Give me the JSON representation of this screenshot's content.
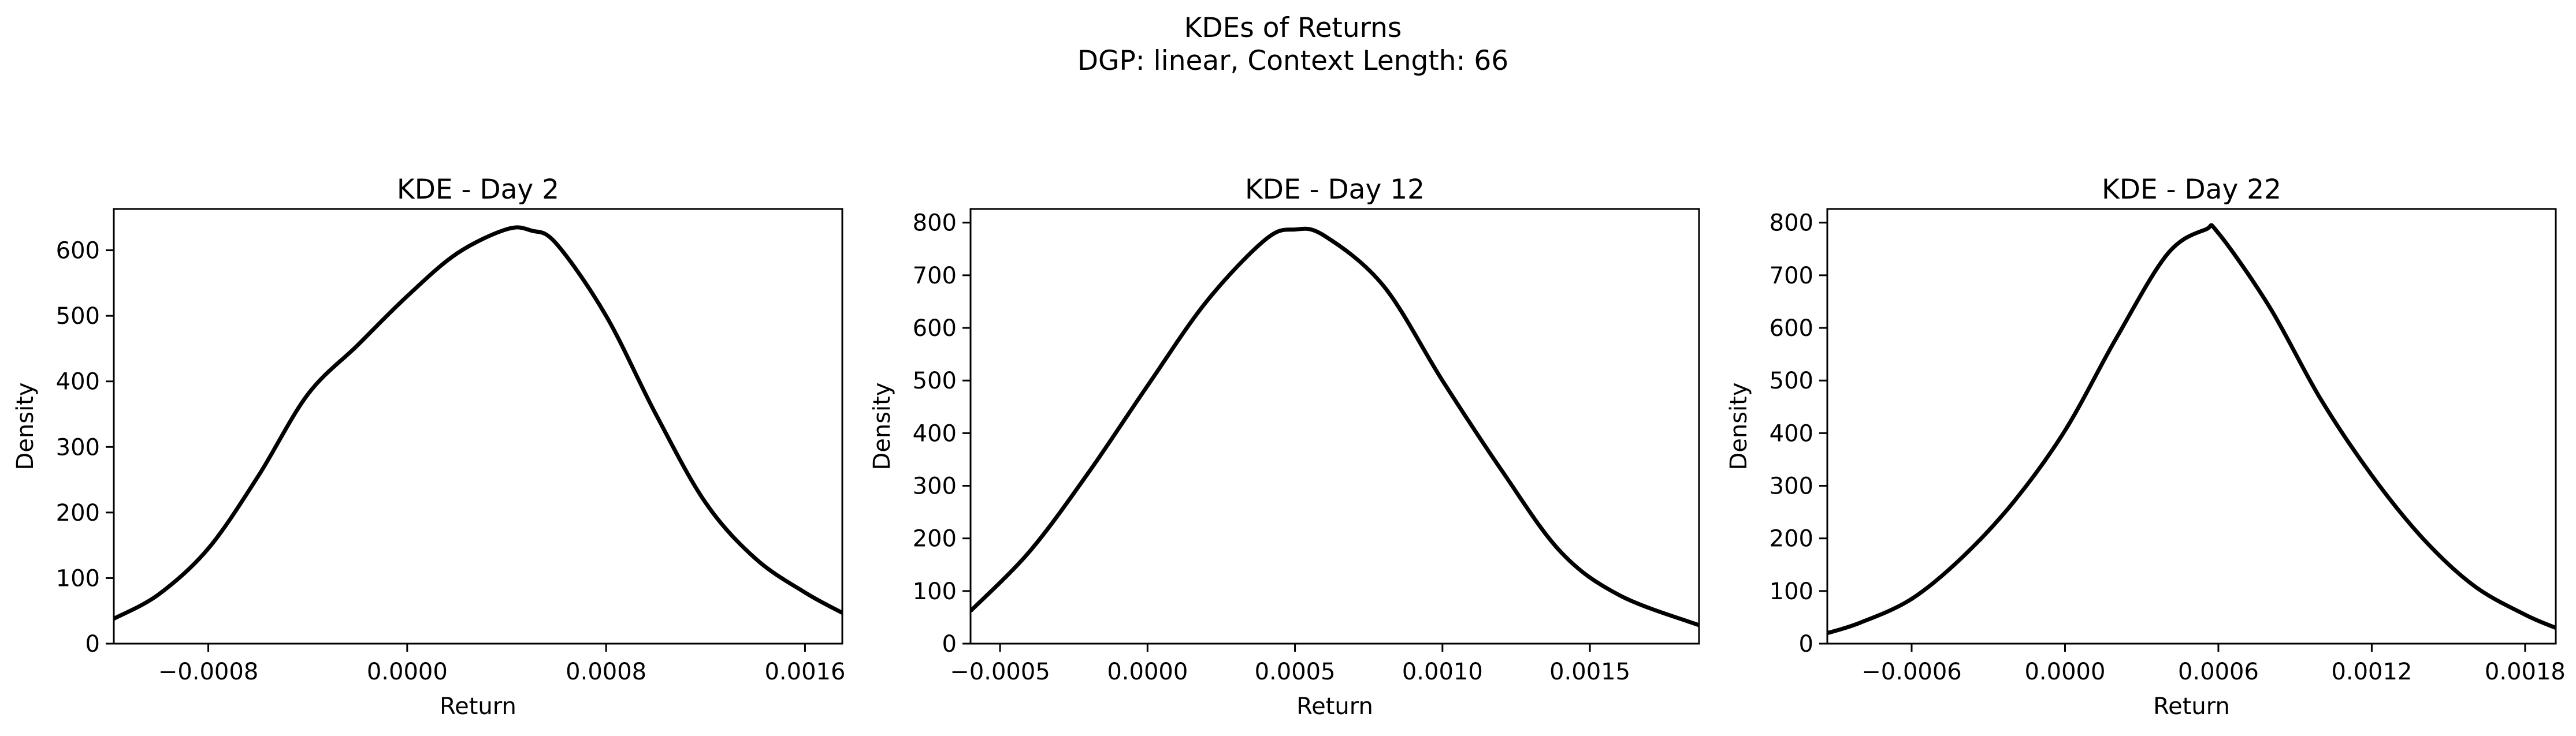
{
  "figure": {
    "suptitle_line1": "KDEs of Returns",
    "suptitle_line2": "DGP: linear, Context Length: 66"
  },
  "colors": {
    "line": "#000000",
    "axes": "#000000",
    "background": "#ffffff"
  },
  "chart_data": [
    {
      "type": "line",
      "title": "KDE - Day 2",
      "xlabel": "Return",
      "ylabel": "Density",
      "xlim": [
        -0.00118,
        0.00175
      ],
      "ylim": [
        0,
        663
      ],
      "xticks": [
        -0.0008,
        0.0,
        0.0008,
        0.0016
      ],
      "xtick_labels": [
        "−0.0008",
        "0.0000",
        "0.0008",
        "0.0016"
      ],
      "yticks": [
        0,
        100,
        200,
        300,
        400,
        500,
        600
      ],
      "ytick_labels": [
        "0",
        "100",
        "200",
        "300",
        "400",
        "500",
        "600"
      ],
      "series": [
        {
          "name": "KDE",
          "x": [
            -0.00118,
            -0.001,
            -0.0008,
            -0.0006,
            -0.0004,
            -0.0002,
            0.0,
            0.0002,
            0.0004,
            0.0005,
            0.0006,
            0.0008,
            0.001,
            0.0012,
            0.0014,
            0.0016,
            0.00175
          ],
          "y": [
            38,
            75,
            145,
            255,
            380,
            455,
            530,
            595,
            632,
            630,
            610,
            500,
            350,
            215,
            130,
            78,
            47
          ]
        }
      ]
    },
    {
      "type": "line",
      "title": "KDE - Day 12",
      "xlabel": "Return",
      "ylabel": "Density",
      "xlim": [
        -0.0006,
        0.00187
      ],
      "ylim": [
        0,
        826
      ],
      "xticks": [
        -0.0005,
        0.0,
        0.0005,
        0.001,
        0.0015
      ],
      "xtick_labels": [
        "−0.0005",
        "0.0000",
        "0.0005",
        "0.0010",
        "0.0015"
      ],
      "yticks": [
        0,
        100,
        200,
        300,
        400,
        500,
        600,
        700,
        800
      ],
      "ytick_labels": [
        "0",
        "100",
        "200",
        "300",
        "400",
        "500",
        "600",
        "700",
        "800"
      ],
      "series": [
        {
          "name": "KDE",
          "x": [
            -0.0006,
            -0.0004,
            -0.0002,
            0.0,
            0.0002,
            0.0004,
            0.0005,
            0.0006,
            0.0008,
            0.001,
            0.0012,
            0.0014,
            0.0016,
            0.00187
          ],
          "y": [
            62,
            175,
            325,
            490,
            650,
            768,
            787,
            775,
            680,
            500,
            330,
            175,
            92,
            35
          ]
        }
      ]
    },
    {
      "type": "line",
      "title": "KDE - Day 22",
      "xlabel": "Return",
      "ylabel": "Density",
      "xlim": [
        -0.00093,
        0.00192
      ],
      "ylim": [
        0,
        826
      ],
      "xticks": [
        -0.0006,
        0.0,
        0.0006,
        0.0012,
        0.0018
      ],
      "xtick_labels": [
        "−0.0006",
        "0.0000",
        "0.0006",
        "0.0012",
        "0.0018"
      ],
      "yticks": [
        0,
        100,
        200,
        300,
        400,
        500,
        600,
        700,
        800
      ],
      "ytick_labels": [
        "0",
        "100",
        "200",
        "300",
        "400",
        "500",
        "600",
        "700",
        "800"
      ],
      "series": [
        {
          "name": "KDE",
          "x": [
            -0.00093,
            -0.0008,
            -0.0006,
            -0.0004,
            -0.0002,
            0.0,
            0.0002,
            0.0004,
            0.00055,
            0.0006,
            0.0008,
            0.001,
            0.0012,
            0.0014,
            0.0016,
            0.0018,
            0.00192
          ],
          "y": [
            20,
            40,
            85,
            165,
            270,
            405,
            580,
            740,
            787,
            780,
            640,
            465,
            320,
            200,
            110,
            55,
            30
          ]
        }
      ]
    }
  ]
}
